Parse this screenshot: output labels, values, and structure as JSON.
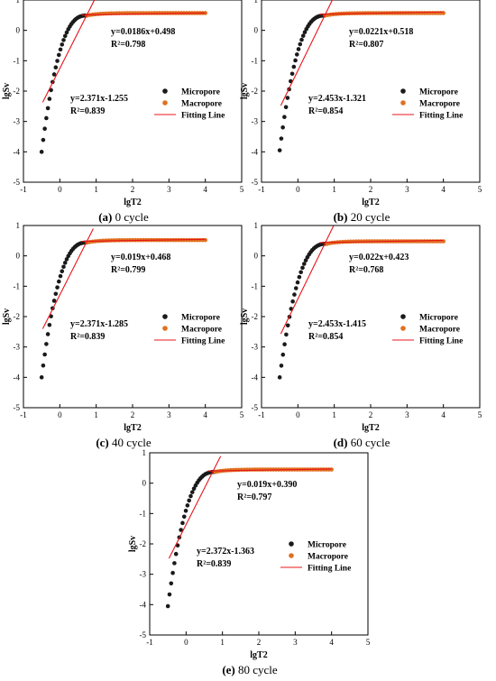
{
  "chart_data": [
    {
      "type": "scatter",
      "caption_tag": "(a)",
      "caption_text": " 0 cycle",
      "xlabel": "lgT2",
      "ylabel": "lgSv",
      "xlim": [
        -1,
        5
      ],
      "ylim": [
        -5,
        1
      ],
      "xticks": [
        -1,
        0,
        1,
        2,
        3,
        4,
        5
      ],
      "yticks": [
        -5,
        -4,
        -3,
        -2,
        -1,
        0,
        1
      ],
      "grid": false,
      "legend_position": "middle-right",
      "breakpoint": 0.75,
      "micro_start": [
        -0.5,
        -4.0
      ],
      "plateau": 0.57,
      "series": [
        {
          "name": "Micropore",
          "color": "#1a1a1a"
        },
        {
          "name": "Macropore",
          "color": "#e07020"
        }
      ],
      "fit_micro": {
        "slope": 2.371,
        "intercept": -1.255,
        "x_range": [
          -0.47,
          0.95
        ],
        "label": "y=2.371x-1.255",
        "r2": "R²=0.839"
      },
      "fit_macro": {
        "slope": 0.0186,
        "intercept": 0.498,
        "x_range": [
          0.6,
          4.0
        ],
        "label": "y=0.0186x+0.498",
        "r2": "R²=0.798"
      },
      "legend": [
        "Micropore",
        "Macropore",
        "Fitting Line"
      ]
    },
    {
      "type": "scatter",
      "caption_tag": "(b)",
      "caption_text": " 20 cycle",
      "xlabel": "lgT2",
      "ylabel": "lgSv",
      "xlim": [
        -1,
        5
      ],
      "ylim": [
        -5,
        1
      ],
      "xticks": [
        -1,
        0,
        1,
        2,
        3,
        4,
        5
      ],
      "yticks": [
        -5,
        -4,
        -3,
        -2,
        -1,
        0,
        1
      ],
      "grid": false,
      "legend_position": "middle-right",
      "breakpoint": 0.75,
      "micro_start": [
        -0.5,
        -3.95
      ],
      "plateau": 0.57,
      "series": [
        {
          "name": "Micropore",
          "color": "#1a1a1a"
        },
        {
          "name": "Macropore",
          "color": "#e07020"
        }
      ],
      "fit_micro": {
        "slope": 2.453,
        "intercept": -1.321,
        "x_range": [
          -0.47,
          1.0
        ],
        "label": "y=2.453x-1.321",
        "r2": "R²=0.854"
      },
      "fit_macro": {
        "slope": 0.0221,
        "intercept": 0.518,
        "x_range": [
          0.6,
          4.0
        ],
        "label": "y=0.0221x+0.518",
        "r2": "R²=0.807"
      },
      "legend": [
        "Micropore",
        "Macropore",
        "Fitting Line"
      ]
    },
    {
      "type": "scatter",
      "caption_tag": "(c)",
      "caption_text": " 40 cycle",
      "xlabel": "lgT2",
      "ylabel": "lgSv",
      "xlim": [
        -1,
        5
      ],
      "ylim": [
        -5,
        1
      ],
      "xticks": [
        -1,
        0,
        1,
        2,
        3,
        4,
        5
      ],
      "yticks": [
        -5,
        -4,
        -3,
        -2,
        -1,
        0,
        1
      ],
      "grid": false,
      "legend_position": "middle-right",
      "breakpoint": 0.75,
      "micro_start": [
        -0.5,
        -4.0
      ],
      "plateau": 0.52,
      "series": [
        {
          "name": "Micropore",
          "color": "#1a1a1a"
        },
        {
          "name": "Macropore",
          "color": "#e07020"
        }
      ],
      "fit_micro": {
        "slope": 2.371,
        "intercept": -1.285,
        "x_range": [
          -0.47,
          0.92
        ],
        "label": "y=2.371x-1.285",
        "r2": "R²=0.839"
      },
      "fit_macro": {
        "slope": 0.019,
        "intercept": 0.468,
        "x_range": [
          0.6,
          4.0
        ],
        "label": "y=0.019x+0.468",
        "r2": "R²=0.799"
      },
      "legend": [
        "Micropore",
        "Macropore",
        "Fitting Line"
      ]
    },
    {
      "type": "scatter",
      "caption_tag": "(d)",
      "caption_text": " 60 cycle",
      "xlabel": "lgT2",
      "ylabel": "lgSv",
      "xlim": [
        -1,
        5
      ],
      "ylim": [
        -5,
        1
      ],
      "xticks": [
        -1,
        0,
        1,
        2,
        3,
        4,
        5
      ],
      "yticks": [
        -5,
        -4,
        -3,
        -2,
        -1,
        0,
        1
      ],
      "grid": false,
      "legend_position": "middle-right",
      "breakpoint": 0.8,
      "micro_start": [
        -0.5,
        -4.0
      ],
      "plateau": 0.48,
      "series": [
        {
          "name": "Micropore",
          "color": "#1a1a1a"
        },
        {
          "name": "Macropore",
          "color": "#e07020"
        }
      ],
      "fit_micro": {
        "slope": 2.453,
        "intercept": -1.415,
        "x_range": [
          -0.47,
          0.98
        ],
        "label": "y=2.453x-1.415",
        "r2": "R²=0.854"
      },
      "fit_macro": {
        "slope": 0.022,
        "intercept": 0.423,
        "x_range": [
          0.6,
          4.0
        ],
        "label": "y=0.022x+0.423",
        "r2": "R²=0.768"
      },
      "legend": [
        "Micropore",
        "Macropore",
        "Fitting Line"
      ]
    },
    {
      "type": "scatter",
      "caption_tag": "(e)",
      "caption_text": " 80 cycle",
      "xlabel": "lgT2",
      "ylabel": "lgSv",
      "xlim": [
        -1,
        5
      ],
      "ylim": [
        -5,
        1
      ],
      "xticks": [
        -1,
        0,
        1,
        2,
        3,
        4,
        5
      ],
      "yticks": [
        -5,
        -4,
        -3,
        -2,
        -1,
        0,
        1
      ],
      "grid": false,
      "legend_position": "middle-right",
      "breakpoint": 0.8,
      "micro_start": [
        -0.5,
        -4.05
      ],
      "plateau": 0.45,
      "series": [
        {
          "name": "Micropore",
          "color": "#1a1a1a"
        },
        {
          "name": "Macropore",
          "color": "#e07020"
        }
      ],
      "fit_micro": {
        "slope": 2.372,
        "intercept": -1.363,
        "x_range": [
          -0.47,
          0.95
        ],
        "label": "y=2.372x-1.363",
        "r2": "R²=0.839"
      },
      "fit_macro": {
        "slope": 0.019,
        "intercept": 0.39,
        "x_range": [
          0.6,
          4.0
        ],
        "label": "y=0.019x+0.390",
        "r2": "R²=0.797"
      },
      "legend": [
        "Micropore",
        "Macropore",
        "Fitting Line"
      ]
    }
  ]
}
